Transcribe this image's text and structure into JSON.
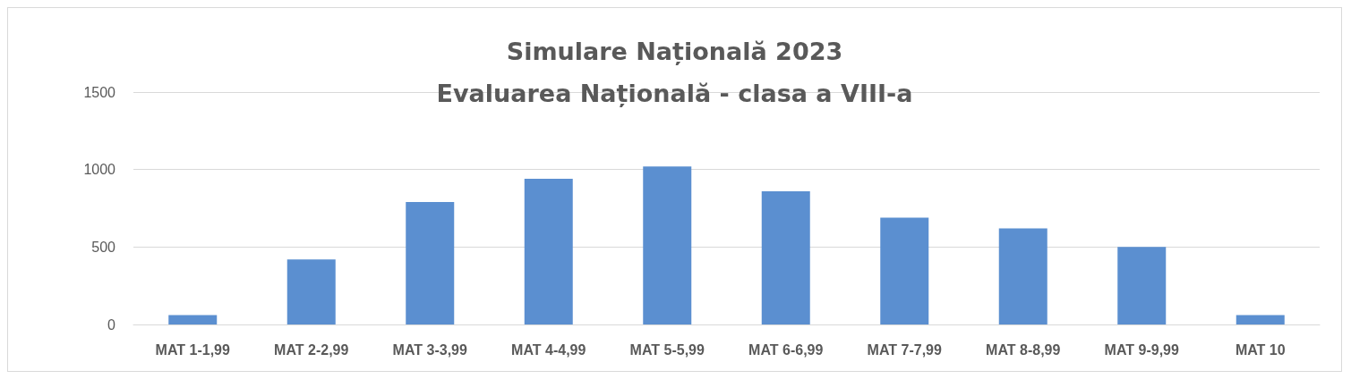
{
  "chart_data": {
    "type": "bar",
    "title": "Simulare Națională 2023",
    "subtitle": "Evaluarea Națională - clasa a VIII-a",
    "categories": [
      "MAT 1-1,99",
      "MAT 2-2,99",
      "MAT 3-3,99",
      "MAT 4-4,99",
      "MAT 5-5,99",
      "MAT 6-6,99",
      "MAT 7-7,99",
      "MAT 8-8,99",
      "MAT 9-9,99",
      "MAT 10"
    ],
    "values": [
      60,
      420,
      790,
      940,
      1020,
      860,
      690,
      620,
      500,
      60
    ],
    "color": "#5b8fd0",
    "ylim": [
      0,
      1500
    ],
    "yticks": [
      0,
      500,
      1000,
      1500
    ],
    "grid": "y"
  }
}
